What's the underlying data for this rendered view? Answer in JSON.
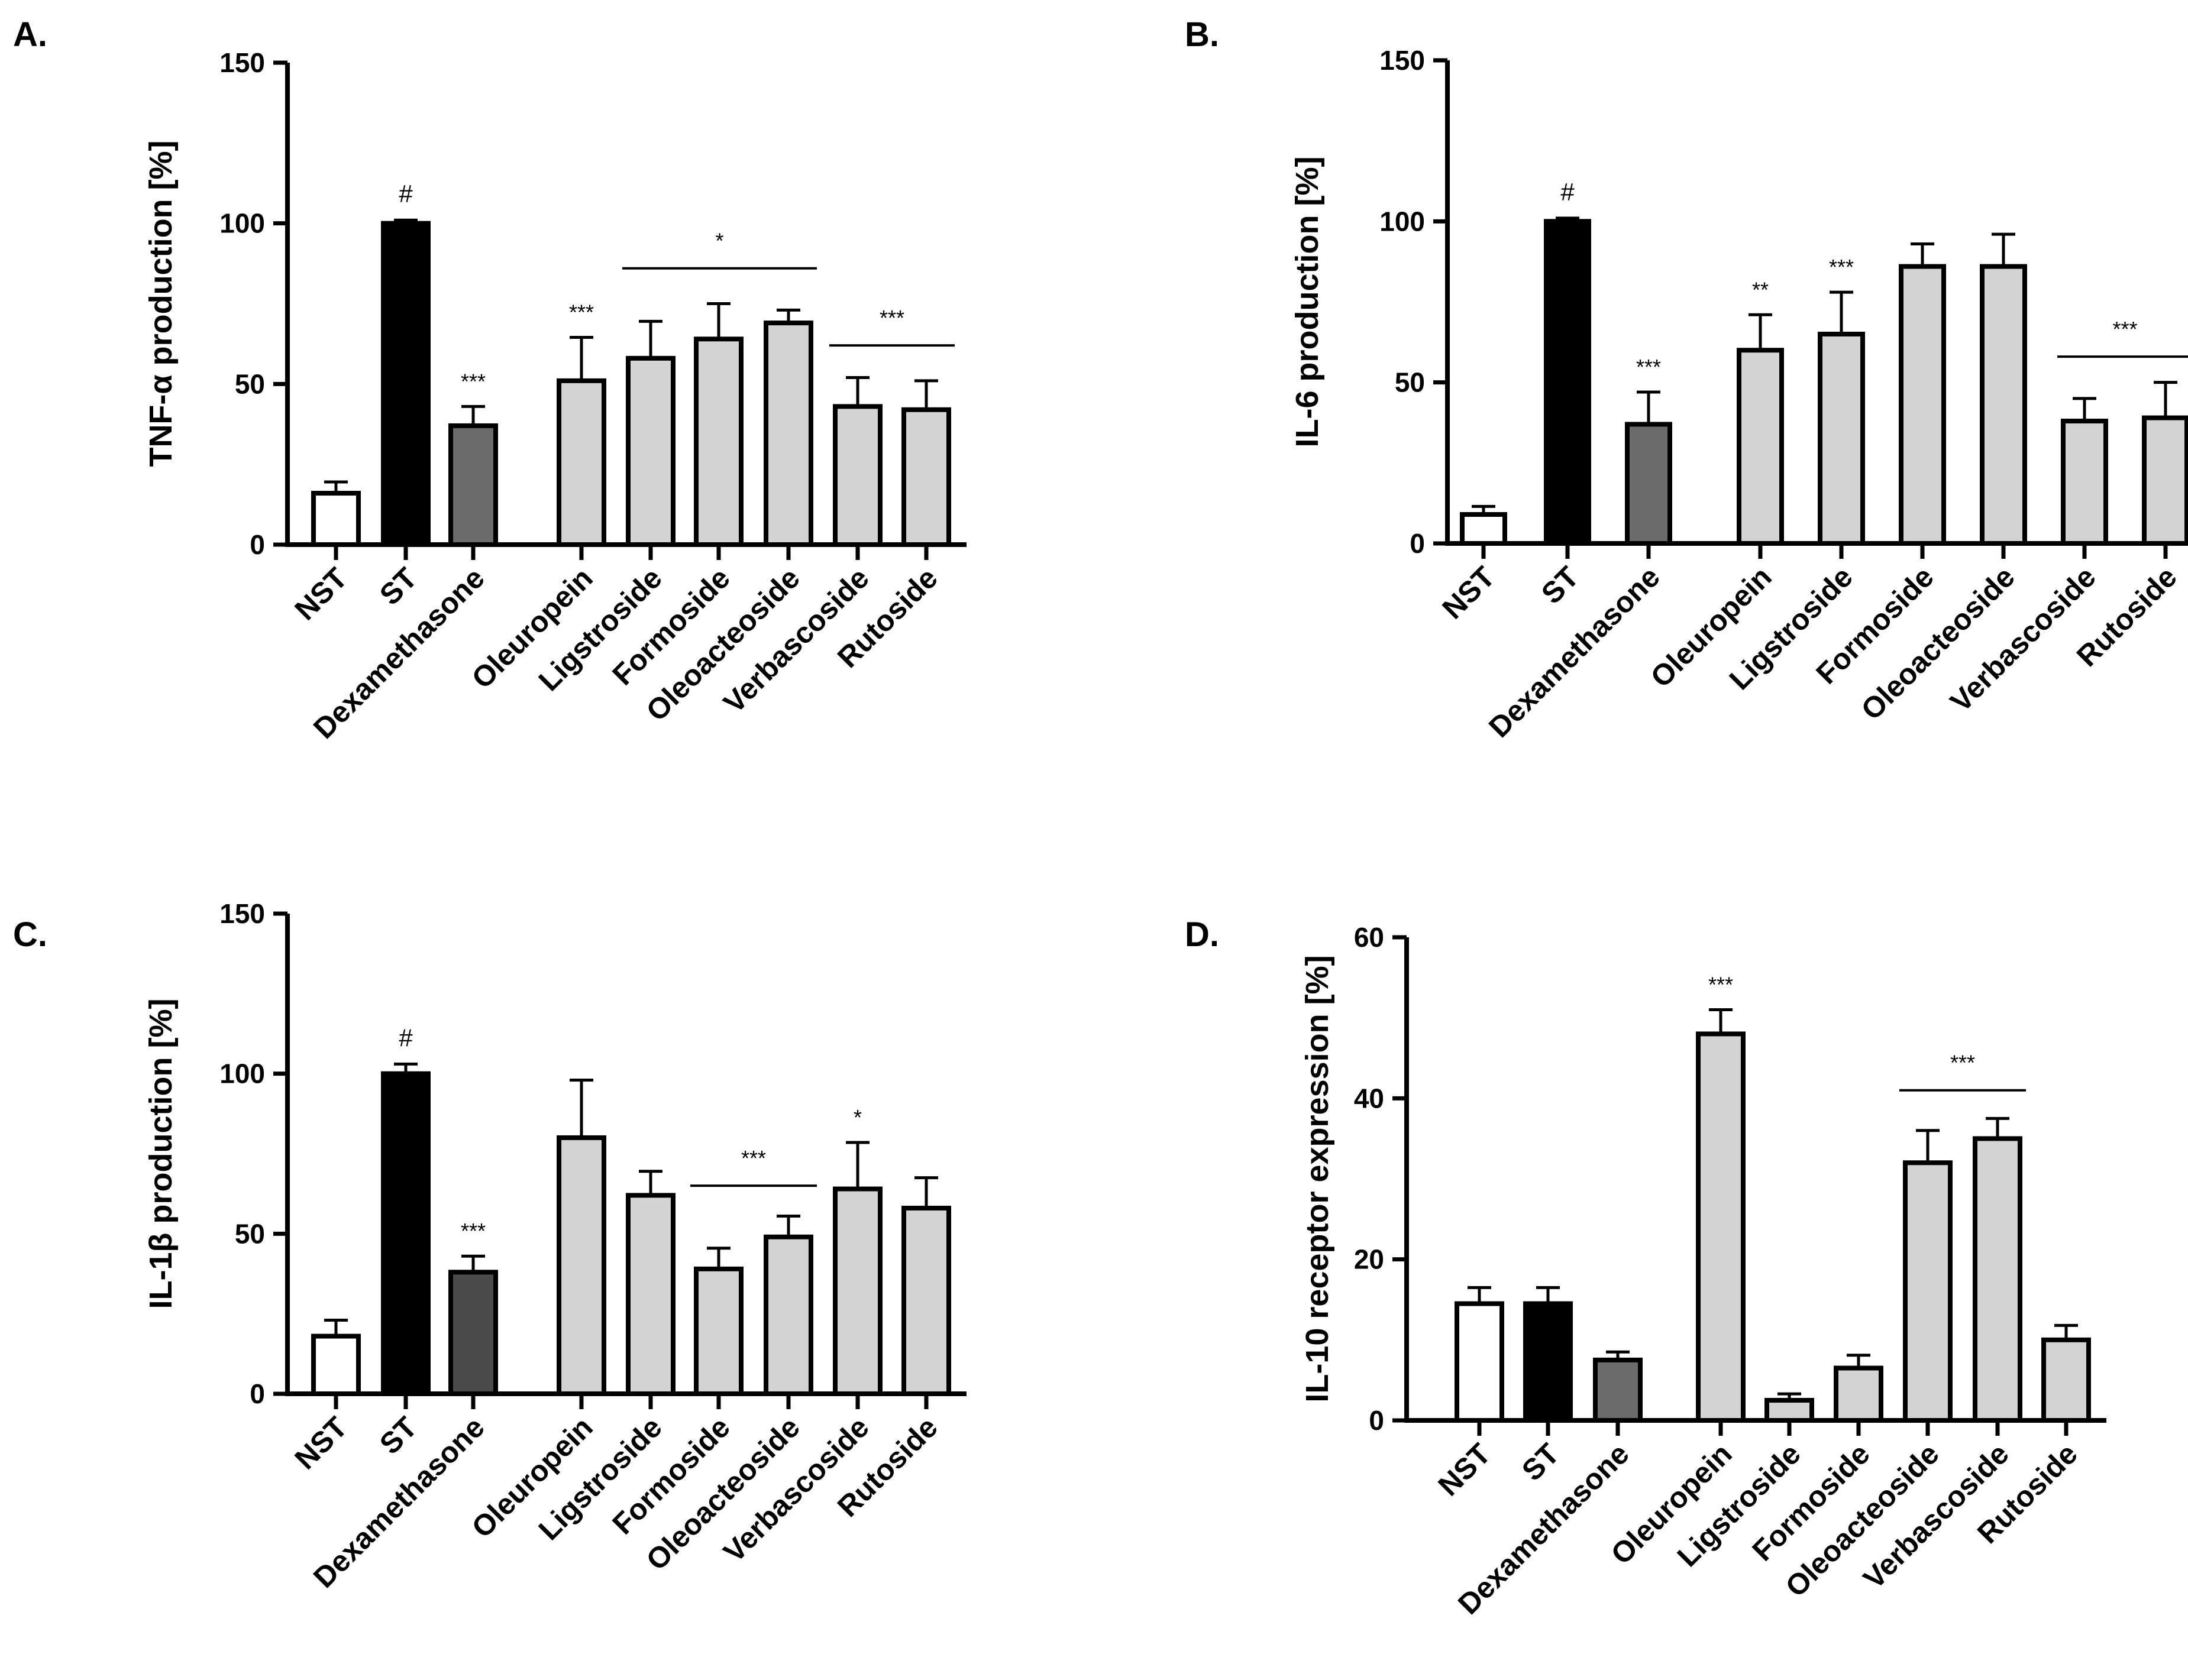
{
  "chart_data": [
    {
      "panel": "A.",
      "type": "bar",
      "ylabel": "TNF-α production [%]",
      "ylim": [
        0,
        150
      ],
      "yticks": [
        0,
        50,
        100,
        150
      ],
      "categories": [
        "NST",
        "ST",
        "Dexamethasone",
        "Oleuropein",
        "Ligstroside",
        "Formoside",
        "Oleoacteoside",
        "Verbascoside",
        "Rutoside"
      ],
      "values": [
        16,
        100,
        37,
        51,
        58,
        64,
        69,
        43,
        42
      ],
      "errors": [
        3.5,
        1,
        6,
        13.5,
        11.5,
        11,
        4,
        9,
        9
      ],
      "fill_colors": [
        "#ffffff",
        "#000000",
        "#6b6b6b",
        "#d3d3d3",
        "#d3d3d3",
        "#d3d3d3",
        "#d3d3d3",
        "#d3d3d3",
        "#d3d3d3"
      ],
      "labels": [
        {
          "text": "#",
          "index": 1
        },
        {
          "text": "***",
          "index": 2
        },
        {
          "text": "***",
          "index": 3
        }
      ],
      "brackets": [
        {
          "text": "*",
          "from": 4,
          "to": 6,
          "y": 86
        },
        {
          "text": "***",
          "from": 7,
          "to": 8,
          "y": 62
        }
      ]
    },
    {
      "panel": "B.",
      "type": "bar",
      "ylabel": "IL-6 production [%]",
      "ylim": [
        0,
        150
      ],
      "yticks": [
        0,
        50,
        100,
        150
      ],
      "categories": [
        "NST",
        "ST",
        "Dexamethasone",
        "Oleuropein",
        "Ligstroside",
        "Formoside",
        "Oleoacteoside",
        "Verbascoside",
        "Rutoside"
      ],
      "values": [
        9,
        100,
        37,
        60,
        65,
        86,
        86,
        38,
        39
      ],
      "errors": [
        2.5,
        1,
        10,
        11,
        13,
        7,
        10,
        7,
        11
      ],
      "fill_colors": [
        "#ffffff",
        "#000000",
        "#6b6b6b",
        "#d3d3d3",
        "#d3d3d3",
        "#d3d3d3",
        "#d3d3d3",
        "#d3d3d3",
        "#d3d3d3"
      ],
      "labels": [
        {
          "text": "#",
          "index": 1
        },
        {
          "text": "***",
          "index": 2
        },
        {
          "text": "**",
          "index": 3
        },
        {
          "text": "***",
          "index": 4
        }
      ],
      "brackets": [
        {
          "text": "***",
          "from": 7,
          "to": 8,
          "y": 58
        }
      ]
    },
    {
      "panel": "C.",
      "type": "bar",
      "ylabel": "IL-1β production [%]",
      "ylim": [
        0,
        150
      ],
      "yticks": [
        0,
        50,
        100,
        150
      ],
      "categories": [
        "NST",
        "ST",
        "Dexamethasone",
        "Oleuropein",
        "Ligstroside",
        "Formoside",
        "Oleoacteoside",
        "Verbascoside",
        "Rutoside"
      ],
      "values": [
        18,
        100,
        38,
        80,
        62,
        39,
        49,
        64,
        58
      ],
      "errors": [
        5,
        3,
        5,
        18,
        7.5,
        6.5,
        6.5,
        14.5,
        9.5
      ],
      "fill_colors": [
        "#ffffff",
        "#000000",
        "#4a4a4a",
        "#d3d3d3",
        "#d3d3d3",
        "#d3d3d3",
        "#d3d3d3",
        "#d3d3d3",
        "#d3d3d3"
      ],
      "labels": [
        {
          "text": "#",
          "index": 1
        },
        {
          "text": "***",
          "index": 2
        },
        {
          "text": "*",
          "index": 7
        }
      ],
      "brackets": [
        {
          "text": "***",
          "from": 5,
          "to": 6,
          "y": 65
        }
      ]
    },
    {
      "panel": "D.",
      "type": "bar",
      "ylabel": "IL-10 receptor expression [%]",
      "ylim": [
        0,
        60
      ],
      "yticks": [
        0,
        20,
        40,
        60
      ],
      "categories": [
        "NST",
        "ST",
        "Dexamethasone",
        "Oleuropein",
        "Ligstroside",
        "Formoside",
        "Oleoacteoside",
        "Verbascoside",
        "Rutoside"
      ],
      "values": [
        14.5,
        14.5,
        7.5,
        48,
        2.5,
        6.5,
        32,
        35,
        10
      ],
      "errors": [
        2,
        2,
        1,
        3,
        0.8,
        1.6,
        4,
        2.5,
        1.8
      ],
      "fill_colors": [
        "#ffffff",
        "#000000",
        "#6b6b6b",
        "#d3d3d3",
        "#d3d3d3",
        "#d3d3d3",
        "#d3d3d3",
        "#d3d3d3",
        "#d3d3d3"
      ],
      "labels": [
        {
          "text": "***",
          "index": 3
        }
      ],
      "brackets": [
        {
          "text": "***",
          "from": 6,
          "to": 7,
          "y": 41
        }
      ]
    }
  ]
}
